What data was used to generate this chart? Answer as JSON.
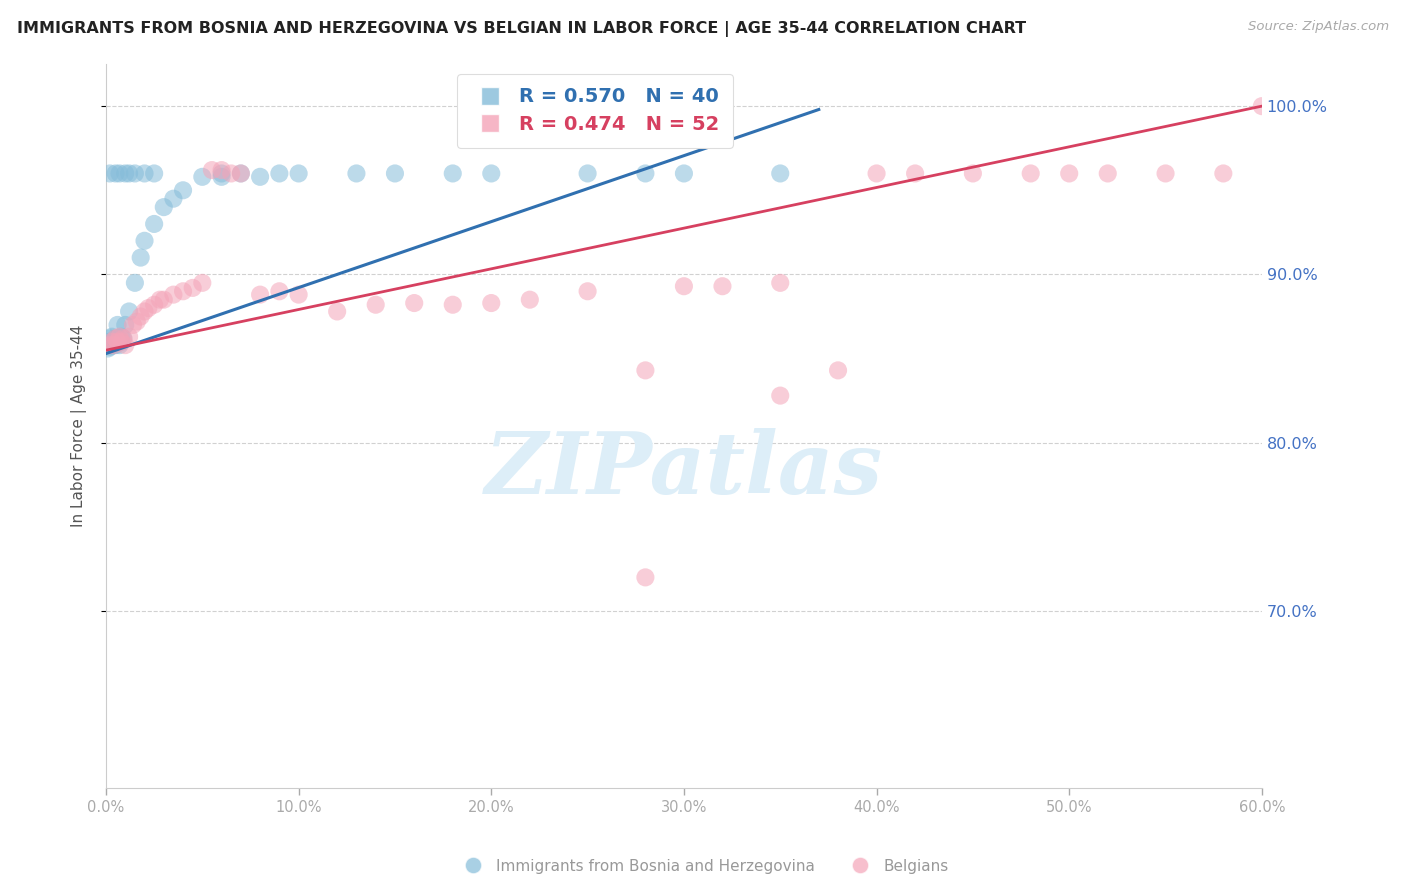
{
  "title": "IMMIGRANTS FROM BOSNIA AND HERZEGOVINA VS BELGIAN IN LABOR FORCE | AGE 35-44 CORRELATION CHART",
  "source": "Source: ZipAtlas.com",
  "ylabel": "In Labor Force | Age 35-44",
  "blue_label": "Immigrants from Bosnia and Herzegovina",
  "pink_label": "Belgians",
  "blue_R": 0.57,
  "blue_N": 40,
  "pink_R": 0.474,
  "pink_N": 52,
  "xlim": [
    0.0,
    0.6
  ],
  "ylim": [
    0.595,
    1.025
  ],
  "yticks": [
    0.7,
    0.8,
    0.9,
    1.0
  ],
  "xticks": [
    0.0,
    0.1,
    0.2,
    0.3,
    0.4,
    0.5,
    0.6
  ],
  "blue_color": "#85bcd9",
  "pink_color": "#f4a4b8",
  "blue_line_color": "#3070b0",
  "pink_line_color": "#d64060",
  "right_tick_color": "#4472c4",
  "bottom_tick_color": "#aaaaaa",
  "grid_color": "#cccccc",
  "title_color": "#222222",
  "source_color": "#aaaaaa",
  "ylabel_color": "#555555",
  "watermark_text": "ZIPatlas",
  "watermark_color": "#ddeef8",
  "blue_x": [
    0.001,
    0.001,
    0.002,
    0.002,
    0.002,
    0.003,
    0.003,
    0.003,
    0.004,
    0.004,
    0.005,
    0.005,
    0.005,
    0.006,
    0.006,
    0.007,
    0.007,
    0.008,
    0.008,
    0.009,
    0.01,
    0.012,
    0.015,
    0.018,
    0.02,
    0.025,
    0.03,
    0.035,
    0.04,
    0.05,
    0.06,
    0.07,
    0.08,
    0.09,
    0.1,
    0.15,
    0.2,
    0.25,
    0.3,
    0.35
  ],
  "blue_y": [
    0.856,
    0.858,
    0.857,
    0.86,
    0.862,
    0.858,
    0.86,
    0.863,
    0.858,
    0.86,
    0.862,
    0.858,
    0.86,
    0.87,
    0.862,
    0.858,
    0.86,
    0.86,
    0.863,
    0.862,
    0.87,
    0.878,
    0.895,
    0.91,
    0.92,
    0.93,
    0.94,
    0.945,
    0.95,
    0.958,
    0.958,
    0.96,
    0.958,
    0.96,
    0.96,
    0.96,
    0.96,
    0.96,
    0.96,
    0.96
  ],
  "blue_top_x": [
    0.002,
    0.005,
    0.007,
    0.01,
    0.012,
    0.015,
    0.02,
    0.025,
    0.06,
    0.13,
    0.18,
    0.28
  ],
  "blue_top_y": [
    0.96,
    0.96,
    0.96,
    0.96,
    0.96,
    0.96,
    0.96,
    0.96,
    0.96,
    0.96,
    0.96,
    0.96
  ],
  "pink_x": [
    0.002,
    0.003,
    0.004,
    0.005,
    0.006,
    0.007,
    0.008,
    0.009,
    0.01,
    0.012,
    0.014,
    0.016,
    0.018,
    0.02,
    0.022,
    0.025,
    0.028,
    0.03,
    0.035,
    0.04,
    0.045,
    0.05,
    0.055,
    0.06,
    0.065,
    0.07,
    0.08,
    0.09,
    0.1,
    0.12,
    0.14,
    0.16,
    0.18,
    0.2,
    0.22,
    0.25,
    0.28,
    0.3,
    0.32,
    0.35,
    0.38,
    0.4,
    0.42,
    0.45,
    0.48,
    0.5,
    0.52,
    0.55,
    0.58,
    0.6,
    0.28,
    0.35
  ],
  "pink_y": [
    0.858,
    0.86,
    0.858,
    0.862,
    0.86,
    0.863,
    0.86,
    0.862,
    0.858,
    0.863,
    0.87,
    0.872,
    0.875,
    0.878,
    0.88,
    0.882,
    0.885,
    0.885,
    0.888,
    0.89,
    0.892,
    0.895,
    0.962,
    0.962,
    0.96,
    0.96,
    0.888,
    0.89,
    0.888,
    0.878,
    0.882,
    0.883,
    0.882,
    0.883,
    0.885,
    0.89,
    0.843,
    0.893,
    0.893,
    0.895,
    0.843,
    0.96,
    0.96,
    0.96,
    0.96,
    0.96,
    0.96,
    0.96,
    0.96,
    1.0,
    0.72,
    0.828
  ],
  "blue_line_x": [
    0.0,
    0.37
  ],
  "blue_line_y": [
    0.853,
    0.998
  ],
  "pink_line_x": [
    0.0,
    0.6
  ],
  "pink_line_y": [
    0.855,
    1.0
  ]
}
